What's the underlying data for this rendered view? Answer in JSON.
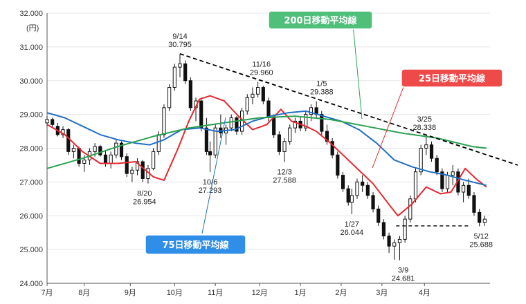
{
  "chart_data": {
    "type": "candlestick",
    "y_unit": "(円)",
    "ylim": [
      24000,
      32000
    ],
    "y_ticks": [
      "24.000",
      "25.000",
      "26.000",
      "27.000",
      "28.000",
      "29.000",
      "30.000",
      "31.000",
      "32.000"
    ],
    "x_ticks": [
      "7月",
      "8月",
      "9月",
      "10月",
      "11月",
      "12月",
      "1月",
      "2月",
      "3月",
      "4月"
    ],
    "colors": {
      "ma25": "#e8262e",
      "ma75": "#1f6fc4",
      "ma200": "#2aa152",
      "candle": "#111111",
      "trend": "#000000"
    },
    "legend": [
      {
        "key": "ma200",
        "label": "200日移動平均線",
        "color": "#4fbf7a"
      },
      {
        "key": "ma25",
        "label": "25日移動平均線",
        "color": "#ef4a4a"
      },
      {
        "key": "ma75",
        "label": "75日移動平均線",
        "color": "#2f8ee8"
      }
    ],
    "annotations": [
      {
        "date": "9/14",
        "value": "30.795",
        "x": 75,
        "y": 30795,
        "pos": "above"
      },
      {
        "date": "8/20",
        "value": "26.954",
        "x": 55,
        "y": 26954,
        "pos": "below"
      },
      {
        "date": "10/6",
        "value": "27.293",
        "x": 92,
        "y": 27293,
        "pos": "below"
      },
      {
        "date": "11/16",
        "value": "29.960",
        "x": 121,
        "y": 29960,
        "pos": "above"
      },
      {
        "date": "12/3",
        "value": "27.588",
        "x": 134,
        "y": 27588,
        "pos": "below"
      },
      {
        "date": "1/5",
        "value": "29.388",
        "x": 155,
        "y": 29388,
        "pos": "above"
      },
      {
        "date": "1/27",
        "value": "26.044",
        "x": 172,
        "y": 26044,
        "pos": "below"
      },
      {
        "date": "3/9",
        "value": "24.681",
        "x": 201,
        "y": 24681,
        "pos": "below"
      },
      {
        "date": "3/25",
        "value": "28.338",
        "x": 213,
        "y": 28338,
        "pos": "above"
      },
      {
        "date": "5/12",
        "value": "25.688",
        "x": 245,
        "y": 25688,
        "pos": "below"
      }
    ],
    "series": [
      {
        "key": "ma25",
        "points": [
          [
            0,
            28700
          ],
          [
            10,
            28400
          ],
          [
            20,
            27900
          ],
          [
            30,
            27550
          ],
          [
            40,
            27550
          ],
          [
            50,
            27600
          ],
          [
            60,
            27150
          ],
          [
            66,
            27050
          ],
          [
            74,
            28000
          ],
          [
            80,
            28800
          ],
          [
            86,
            29450
          ],
          [
            92,
            29550
          ],
          [
            100,
            29400
          ],
          [
            108,
            28950
          ],
          [
            116,
            28550
          ],
          [
            124,
            28700
          ],
          [
            132,
            29150
          ],
          [
            138,
            28800
          ],
          [
            146,
            28650
          ],
          [
            152,
            28500
          ],
          [
            160,
            28150
          ],
          [
            168,
            27750
          ],
          [
            174,
            27450
          ],
          [
            184,
            26950
          ],
          [
            192,
            26400
          ],
          [
            198,
            26000
          ],
          [
            206,
            26350
          ],
          [
            214,
            26850
          ],
          [
            222,
            26650
          ],
          [
            228,
            26700
          ],
          [
            236,
            27400
          ],
          [
            242,
            27100
          ],
          [
            248,
            26850
          ]
        ]
      },
      {
        "key": "ma75",
        "points": [
          [
            0,
            29050
          ],
          [
            10,
            28900
          ],
          [
            20,
            28650
          ],
          [
            30,
            28400
          ],
          [
            40,
            28250
          ],
          [
            50,
            28150
          ],
          [
            58,
            28100
          ],
          [
            66,
            28250
          ],
          [
            76,
            28550
          ],
          [
            86,
            28600
          ],
          [
            96,
            28500
          ],
          [
            106,
            28550
          ],
          [
            116,
            28800
          ],
          [
            126,
            28950
          ],
          [
            136,
            29050
          ],
          [
            146,
            29100
          ],
          [
            156,
            28950
          ],
          [
            166,
            28800
          ],
          [
            176,
            28550
          ],
          [
            186,
            28150
          ],
          [
            196,
            27650
          ],
          [
            206,
            27450
          ],
          [
            216,
            27300
          ],
          [
            226,
            27200
          ],
          [
            236,
            27050
          ],
          [
            248,
            26900
          ]
        ]
      },
      {
        "key": "ma200",
        "points": [
          [
            0,
            27400
          ],
          [
            20,
            27700
          ],
          [
            40,
            28050
          ],
          [
            60,
            28350
          ],
          [
            80,
            28600
          ],
          [
            100,
            28750
          ],
          [
            120,
            28900
          ],
          [
            140,
            28950
          ],
          [
            160,
            28850
          ],
          [
            180,
            28650
          ],
          [
            200,
            28450
          ],
          [
            220,
            28300
          ],
          [
            240,
            28050
          ],
          [
            248,
            28000
          ]
        ]
      }
    ],
    "candles": [
      [
        0,
        28750,
        28950,
        28650,
        28850
      ],
      [
        3,
        28850,
        28900,
        28600,
        28700
      ],
      [
        6,
        28650,
        28750,
        28350,
        28400
      ],
      [
        9,
        28400,
        28650,
        28300,
        28550
      ],
      [
        12,
        28550,
        28600,
        27800,
        27900
      ],
      [
        15,
        27900,
        28100,
        27700,
        28000
      ],
      [
        18,
        28000,
        28050,
        27450,
        27550
      ],
      [
        21,
        27550,
        27800,
        27300,
        27650
      ],
      [
        24,
        27650,
        28000,
        27500,
        27900
      ],
      [
        27,
        27900,
        28150,
        27750,
        28050
      ],
      [
        30,
        28050,
        28100,
        27750,
        27800
      ],
      [
        33,
        27800,
        27950,
        27450,
        27550
      ],
      [
        36,
        27550,
        27900,
        27400,
        27800
      ],
      [
        39,
        27800,
        28250,
        27700,
        28150
      ],
      [
        42,
        28150,
        28200,
        27650,
        27750
      ],
      [
        45,
        27750,
        27850,
        27150,
        27250
      ],
      [
        48,
        27250,
        27450,
        27000,
        27350
      ],
      [
        51,
        27350,
        27700,
        27200,
        27600
      ],
      [
        54,
        27600,
        27650,
        27000,
        27100
      ],
      [
        57,
        27100,
        27500,
        26954,
        27400
      ],
      [
        60,
        27400,
        28000,
        27350,
        27900
      ],
      [
        63,
        27900,
        28500,
        27800,
        28400
      ],
      [
        66,
        28400,
        29300,
        28300,
        29200
      ],
      [
        69,
        29200,
        29900,
        29100,
        29800
      ],
      [
        72,
        29800,
        30500,
        29700,
        30400
      ],
      [
        75,
        30400,
        30795,
        30100,
        30500
      ],
      [
        78,
        30500,
        30600,
        29900,
        30000
      ],
      [
        81,
        30000,
        30100,
        29100,
        29200
      ],
      [
        84,
        29200,
        29500,
        28800,
        29400
      ],
      [
        87,
        29400,
        29500,
        28500,
        28600
      ],
      [
        90,
        28600,
        28900,
        27800,
        27900
      ],
      [
        92,
        27900,
        28200,
        27293,
        27800
      ],
      [
        95,
        27800,
        28700,
        27700,
        28600
      ],
      [
        98,
        28600,
        29000,
        28300,
        28450
      ],
      [
        101,
        28450,
        28700,
        28100,
        28600
      ],
      [
        104,
        28600,
        29000,
        28500,
        28900
      ],
      [
        107,
        28900,
        28950,
        28400,
        28500
      ],
      [
        110,
        28500,
        29200,
        28400,
        29100
      ],
      [
        113,
        29100,
        29600,
        29000,
        29500
      ],
      [
        116,
        29500,
        29800,
        29300,
        29600
      ],
      [
        119,
        29600,
        29960,
        29500,
        29800
      ],
      [
        122,
        29800,
        29850,
        29300,
        29400
      ],
      [
        125,
        29400,
        29500,
        28800,
        28900
      ],
      [
        128,
        28900,
        29000,
        28300,
        28400
      ],
      [
        131,
        28400,
        28500,
        27800,
        27900
      ],
      [
        134,
        27900,
        28300,
        27588,
        28200
      ],
      [
        137,
        28200,
        28700,
        28100,
        28600
      ],
      [
        140,
        28600,
        28900,
        28450,
        28800
      ],
      [
        143,
        28800,
        28950,
        28500,
        28600
      ],
      [
        146,
        28600,
        29100,
        28500,
        29000
      ],
      [
        149,
        29000,
        29300,
        28800,
        29200
      ],
      [
        152,
        29200,
        29388,
        28900,
        29000
      ],
      [
        155,
        29000,
        29100,
        28400,
        28500
      ],
      [
        158,
        28500,
        28700,
        28100,
        28200
      ],
      [
        161,
        28200,
        28300,
        27700,
        27800
      ],
      [
        164,
        27800,
        27900,
        27100,
        27200
      ],
      [
        167,
        27200,
        27300,
        26700,
        26800
      ],
      [
        170,
        26800,
        26900,
        26300,
        26400
      ],
      [
        172,
        26400,
        26800,
        26044,
        26600
      ],
      [
        175,
        26600,
        27100,
        26500,
        27000
      ],
      [
        178,
        27000,
        27200,
        26700,
        26900
      ],
      [
        181,
        26900,
        27000,
        26500,
        26600
      ],
      [
        184,
        26600,
        26700,
        26100,
        26200
      ],
      [
        187,
        26200,
        26300,
        25700,
        25800
      ],
      [
        190,
        25800,
        25900,
        25300,
        25400
      ],
      [
        193,
        25400,
        25500,
        24900,
        25100
      ],
      [
        196,
        25100,
        25300,
        24700,
        25200
      ],
      [
        199,
        25200,
        25400,
        24681,
        25300
      ],
      [
        202,
        25300,
        26000,
        25200,
        25900
      ],
      [
        205,
        25900,
        26600,
        25800,
        26500
      ],
      [
        208,
        26500,
        27400,
        26400,
        27300
      ],
      [
        211,
        27300,
        28100,
        27200,
        28000
      ],
      [
        214,
        28000,
        28338,
        27800,
        28100
      ],
      [
        217,
        28100,
        28200,
        27600,
        27700
      ],
      [
        220,
        27700,
        27800,
        27200,
        27300
      ],
      [
        223,
        27300,
        27400,
        26700,
        26800
      ],
      [
        226,
        26800,
        27300,
        26700,
        27200
      ],
      [
        229,
        27200,
        27500,
        26900,
        27300
      ],
      [
        232,
        27300,
        27400,
        26600,
        26700
      ],
      [
        235,
        26700,
        27000,
        26400,
        26900
      ],
      [
        238,
        26900,
        27100,
        26500,
        26600
      ],
      [
        241,
        26600,
        26700,
        26000,
        26100
      ],
      [
        244,
        26100,
        26200,
        25688,
        25800
      ],
      [
        247,
        25800,
        26000,
        25700,
        25900
      ]
    ],
    "trendline": [
      [
        75,
        30795
      ],
      [
        270,
        27500
      ]
    ],
    "support_line": [
      [
        197,
        25700
      ],
      [
        238,
        25700
      ]
    ],
    "pointers": [
      {
        "key": "ma200",
        "from": [
          510,
          36
        ],
        "to": [
          523,
          172
        ]
      },
      {
        "key": "ma25",
        "from": [
          583,
          126
        ],
        "to": [
          538,
          243
        ]
      },
      {
        "key": "ma75",
        "from": [
          292,
          338
        ],
        "to": [
          326,
          170
        ]
      }
    ]
  }
}
